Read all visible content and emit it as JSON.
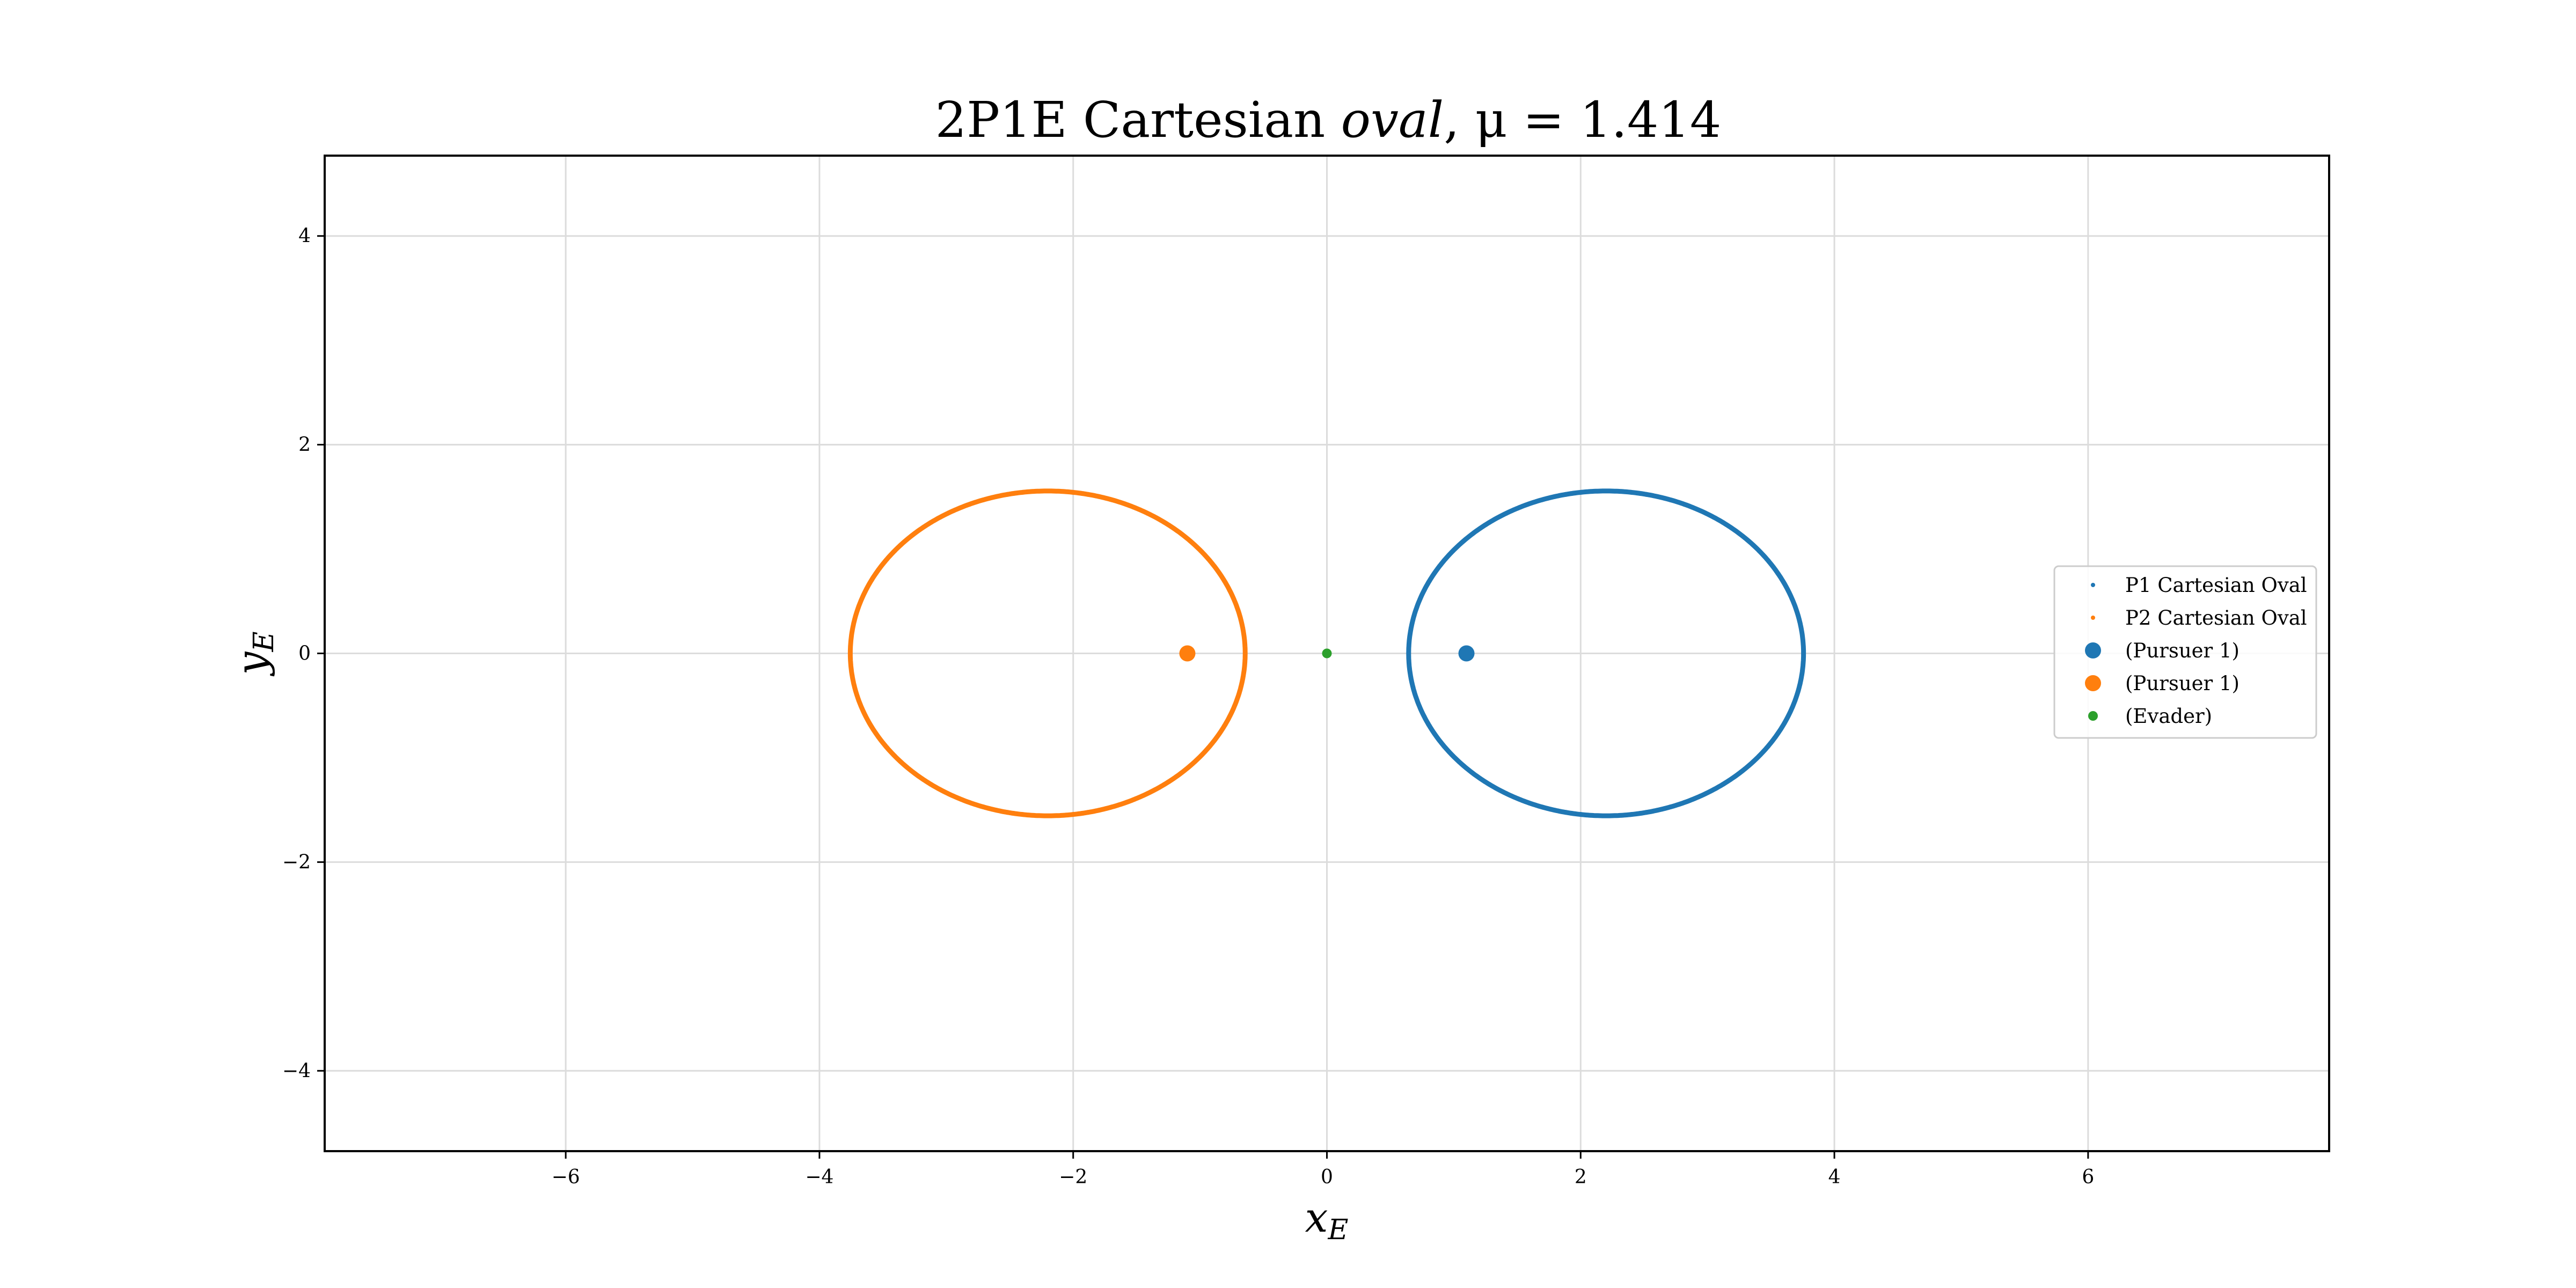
{
  "chart_data": {
    "type": "scatter",
    "title_text": "2P1E Cartesian ",
    "title_italic": "oval",
    "title_math": ", μ = 1.414",
    "xlabel_base": "x",
    "xlabel_sub": "E",
    "ylabel_base": "y",
    "ylabel_sub": "E",
    "xlim": [
      -7.9,
      7.9
    ],
    "ylim": [
      -4.77,
      4.77
    ],
    "x_ticks": [
      -6,
      -4,
      -2,
      0,
      2,
      4,
      6
    ],
    "y_ticks": [
      -4,
      -2,
      0,
      2,
      4
    ],
    "x_tick_labels": [
      "−6",
      "−4",
      "−2",
      "0",
      "2",
      "4",
      "6"
    ],
    "y_tick_labels": [
      "−4",
      "−2",
      "0",
      "2",
      "4"
    ],
    "grid": true,
    "legend_position": "center-right",
    "mu": 1.414,
    "series": [
      {
        "name": "P1 Cartesian Oval",
        "kind": "curve",
        "color": "#1f77b4",
        "focus": [
          1.1,
          0
        ],
        "evader": [
          0,
          0
        ]
      },
      {
        "name": "P2 Cartesian Oval",
        "kind": "curve",
        "color": "#ff7f0e",
        "focus": [
          -1.1,
          0
        ],
        "evader": [
          0,
          0
        ]
      },
      {
        "name": "(Pursuer 1)",
        "kind": "marker",
        "color": "#1f77b4",
        "x": 1.1,
        "y": 0
      },
      {
        "name": "(Pursuer 1)",
        "kind": "marker",
        "color": "#ff7f0e",
        "x": -1.1,
        "y": 0
      },
      {
        "name": "(Evader)",
        "kind": "marker",
        "color": "#2ca02c",
        "x": 0,
        "y": 0
      }
    ]
  }
}
